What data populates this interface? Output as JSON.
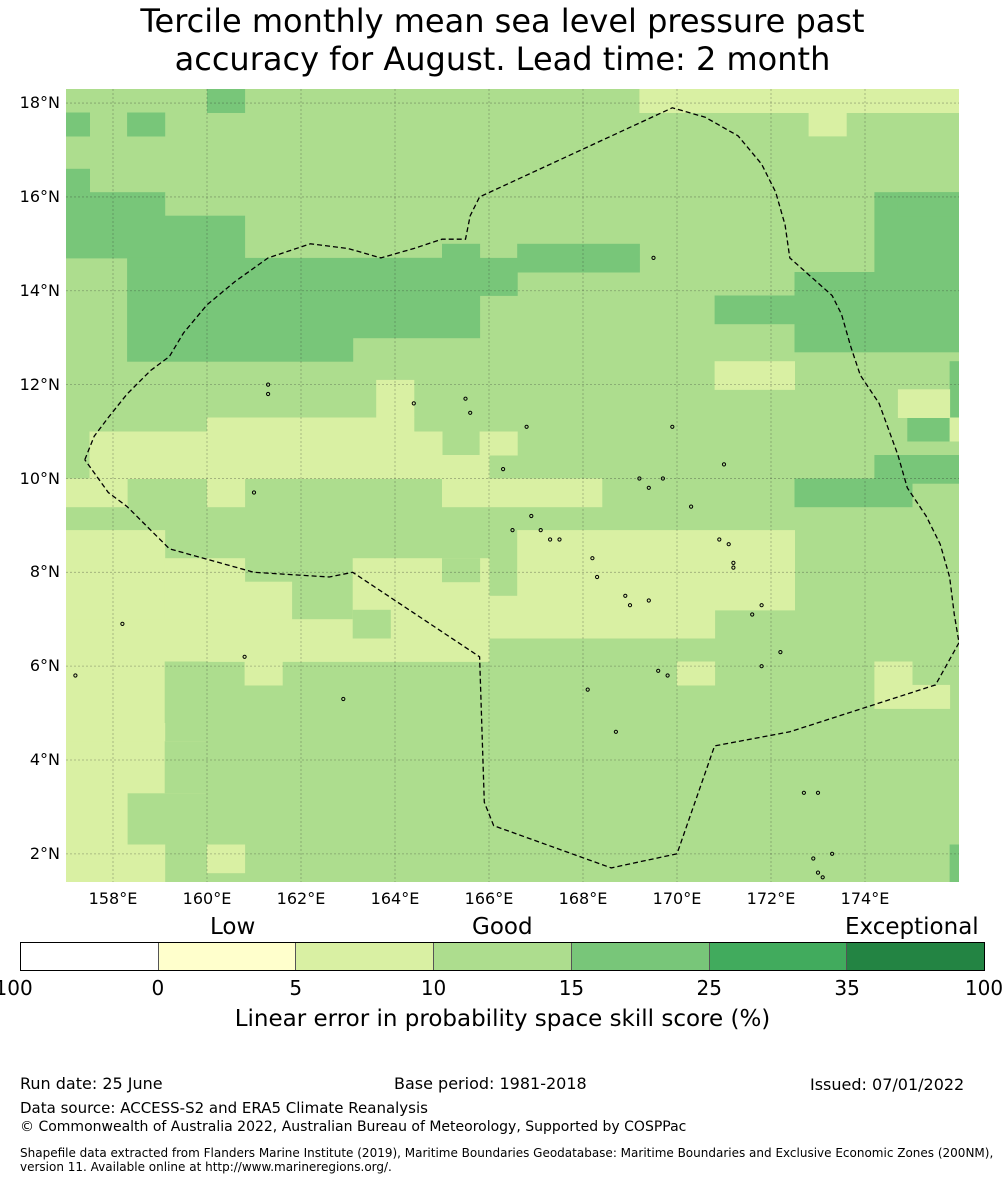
{
  "title": {
    "line1": "Tercile monthly mean sea level pressure past",
    "line2": "accuracy for August. Lead time: 2 month"
  },
  "map": {
    "lat_ticks": [
      {
        "lat": 18,
        "label": "18°N"
      },
      {
        "lat": 16,
        "label": "16°N"
      },
      {
        "lat": 14,
        "label": "14°N"
      },
      {
        "lat": 12,
        "label": "12°N"
      },
      {
        "lat": 10,
        "label": "10°N"
      },
      {
        "lat": 8,
        "label": "8°N"
      },
      {
        "lat": 6,
        "label": "6°N"
      },
      {
        "lat": 4,
        "label": "4°N"
      },
      {
        "lat": 2,
        "label": "2°N"
      }
    ],
    "lon_ticks": [
      {
        "lon": 158,
        "label": "158°E"
      },
      {
        "lon": 160,
        "label": "160°E"
      },
      {
        "lon": 162,
        "label": "162°E"
      },
      {
        "lon": 164,
        "label": "164°E"
      },
      {
        "lon": 166,
        "label": "166°E"
      },
      {
        "lon": 168,
        "label": "168°E"
      },
      {
        "lon": 170,
        "label": "170°E"
      },
      {
        "lon": 172,
        "label": "172°E"
      },
      {
        "lon": 174,
        "label": "174°E"
      }
    ],
    "extent": {
      "lon_min": 157.0,
      "lon_max": 176.0,
      "lat_min": 1.4,
      "lat_max": 18.3
    },
    "class_colors": {
      "5-10": "#d9f0a3",
      "10-15": "#addd8e",
      "15-25": "#78c679"
    },
    "regions": [
      {
        "class": "5-10",
        "lon": [
          169.2,
          176.0
        ],
        "lat": [
          17.8,
          18.3
        ]
      },
      {
        "class": "5-10",
        "lon": [
          172.8,
          173.6
        ],
        "lat": [
          17.3,
          18.3
        ]
      },
      {
        "class": "15-25",
        "lon": [
          160.0,
          160.8
        ],
        "lat": [
          17.8,
          18.3
        ]
      },
      {
        "class": "15-25",
        "lon": [
          157.0,
          157.5
        ],
        "lat": [
          17.3,
          17.8
        ]
      },
      {
        "class": "15-25",
        "lon": [
          158.3,
          159.1
        ],
        "lat": [
          17.3,
          17.8
        ]
      },
      {
        "class": "15-25",
        "lon": [
          157.0,
          157.5
        ],
        "lat": [
          15.8,
          16.6
        ]
      },
      {
        "class": "15-25",
        "lon": [
          157.0,
          159.1
        ],
        "lat": [
          14.7,
          16.1
        ]
      },
      {
        "class": "15-25",
        "lon": [
          159.1,
          160.8
        ],
        "lat": [
          14.7,
          15.6
        ]
      },
      {
        "class": "15-25",
        "lon": [
          158.3,
          165.8
        ],
        "lat": [
          13.0,
          14.7
        ]
      },
      {
        "class": "15-25",
        "lon": [
          158.3,
          163.1
        ],
        "lat": [
          12.5,
          13.0
        ]
      },
      {
        "class": "15-25",
        "lon": [
          163.1,
          166.6
        ],
        "lat": [
          13.9,
          14.7
        ]
      },
      {
        "class": "15-25",
        "lon": [
          165.0,
          165.8
        ],
        "lat": [
          14.7,
          15.0
        ]
      },
      {
        "class": "15-25",
        "lon": [
          166.6,
          169.2
        ],
        "lat": [
          14.4,
          15.0
        ]
      },
      {
        "class": "15-25",
        "lon": [
          174.2,
          176.0
        ],
        "lat": [
          14.4,
          16.1
        ]
      },
      {
        "class": "15-25",
        "lon": [
          174.7,
          176.0
        ],
        "lat": [
          15.6,
          16.1
        ]
      },
      {
        "class": "15-25",
        "lon": [
          172.5,
          176.0
        ],
        "lat": [
          12.7,
          14.4
        ]
      },
      {
        "class": "15-25",
        "lon": [
          170.8,
          173.4
        ],
        "lat": [
          13.3,
          13.9
        ]
      },
      {
        "class": "15-25",
        "lon": [
          174.9,
          175.8
        ],
        "lat": [
          10.8,
          11.3
        ]
      },
      {
        "class": "15-25",
        "lon": [
          174.2,
          176.0
        ],
        "lat": [
          9.9,
          10.5
        ]
      },
      {
        "class": "15-25",
        "lon": [
          172.5,
          175.0
        ],
        "lat": [
          9.4,
          10.0
        ]
      },
      {
        "class": "15-25",
        "lon": [
          175.8,
          176.0
        ],
        "lat": [
          11.3,
          12.5
        ]
      },
      {
        "class": "15-25",
        "lon": [
          175.8,
          176.0
        ],
        "lat": [
          1.4,
          2.2
        ]
      },
      {
        "class": "5-10",
        "lon": [
          170.8,
          172.5
        ],
        "lat": [
          11.9,
          12.5
        ]
      },
      {
        "class": "5-10",
        "lon": [
          174.7,
          175.8
        ],
        "lat": [
          11.3,
          11.9
        ]
      },
      {
        "class": "5-10",
        "lon": [
          175.8,
          176.0
        ],
        "lat": [
          10.8,
          11.3
        ]
      },
      {
        "class": "5-10",
        "lon": [
          163.6,
          164.4
        ],
        "lat": [
          11.3,
          12.1
        ]
      },
      {
        "class": "5-10",
        "lon": [
          160.0,
          164.4
        ],
        "lat": [
          10.5,
          11.3
        ]
      },
      {
        "class": "5-10",
        "lon": [
          157.5,
          165.0
        ],
        "lat": [
          10.0,
          11.0
        ]
      },
      {
        "class": "5-10",
        "lon": [
          165.8,
          166.6
        ],
        "lat": [
          10.5,
          11.0
        ]
      },
      {
        "class": "5-10",
        "lon": [
          158.3,
          160.8
        ],
        "lat": [
          10.0,
          10.5
        ]
      },
      {
        "class": "5-10",
        "lon": [
          164.4,
          166.0
        ],
        "lat": [
          10.0,
          10.5
        ]
      },
      {
        "class": "5-10",
        "lon": [
          157.0,
          158.3
        ],
        "lat": [
          9.4,
          10.0
        ]
      },
      {
        "class": "5-10",
        "lon": [
          160.0,
          160.8
        ],
        "lat": [
          9.4,
          10.0
        ]
      },
      {
        "class": "5-10",
        "lon": [
          165.0,
          168.4
        ],
        "lat": [
          9.4,
          10.0
        ]
      },
      {
        "class": "5-10",
        "lon": [
          157.0,
          159.1
        ],
        "lat": [
          7.0,
          8.9
        ]
      },
      {
        "class": "5-10",
        "lon": [
          159.1,
          160.8
        ],
        "lat": [
          7.0,
          8.3
        ]
      },
      {
        "class": "5-10",
        "lon": [
          160.8,
          161.8
        ],
        "lat": [
          7.0,
          7.8
        ]
      },
      {
        "class": "5-10",
        "lon": [
          163.1,
          166.0
        ],
        "lat": [
          7.0,
          8.3
        ]
      },
      {
        "class": "5-10",
        "lon": [
          166.6,
          172.5
        ],
        "lat": [
          7.2,
          8.9
        ]
      },
      {
        "class": "5-10",
        "lon": [
          166.0,
          170.8
        ],
        "lat": [
          6.6,
          7.5
        ]
      },
      {
        "class": "5-10",
        "lon": [
          157.0,
          166.0
        ],
        "lat": [
          6.1,
          7.0
        ]
      },
      {
        "class": "5-10",
        "lon": [
          157.0,
          159.1
        ],
        "lat": [
          4.4,
          6.1
        ]
      },
      {
        "class": "5-10",
        "lon": [
          160.8,
          161.6
        ],
        "lat": [
          5.6,
          6.1
        ]
      },
      {
        "class": "5-10",
        "lon": [
          157.0,
          160.0
        ],
        "lat": [
          3.3,
          4.4
        ]
      },
      {
        "class": "5-10",
        "lon": [
          157.0,
          158.3
        ],
        "lat": [
          2.2,
          3.3
        ]
      },
      {
        "class": "5-10",
        "lon": [
          157.0,
          159.1
        ],
        "lat": [
          1.4,
          2.2
        ]
      },
      {
        "class": "5-10",
        "lon": [
          160.0,
          160.8
        ],
        "lat": [
          1.6,
          2.2
        ]
      },
      {
        "class": "5-10",
        "lon": [
          170.0,
          170.8
        ],
        "lat": [
          5.6,
          6.1
        ]
      },
      {
        "class": "5-10",
        "lon": [
          174.2,
          175.0
        ],
        "lat": [
          5.1,
          6.1
        ]
      },
      {
        "class": "5-10",
        "lon": [
          175.0,
          175.8
        ],
        "lat": [
          5.1,
          5.6
        ]
      },
      {
        "class": "10-15",
        "lon": [
          163.1,
          163.9
        ],
        "lat": [
          6.6,
          7.2
        ]
      },
      {
        "class": "10-15",
        "lon": [
          165.0,
          165.8
        ],
        "lat": [
          7.8,
          8.3
        ]
      },
      {
        "class": "10-15",
        "lon": [
          159.1,
          160.0
        ],
        "lat": [
          3.3,
          4.4
        ]
      },
      {
        "class": "10-15",
        "lon": [
          159.1,
          160.0
        ],
        "lat": [
          4.8,
          6.1
        ]
      }
    ],
    "boundary": [
      [
        157.4,
        10.4
      ],
      [
        157.6,
        10.9
      ],
      [
        157.9,
        11.3
      ],
      [
        158.3,
        11.8
      ],
      [
        158.8,
        12.3
      ],
      [
        159.2,
        12.6
      ],
      [
        159.5,
        13.1
      ],
      [
        160.0,
        13.7
      ],
      [
        160.6,
        14.2
      ],
      [
        161.3,
        14.7
      ],
      [
        162.2,
        15.0
      ],
      [
        163.0,
        14.9
      ],
      [
        163.7,
        14.7
      ],
      [
        164.4,
        14.9
      ],
      [
        165.0,
        15.1
      ],
      [
        165.5,
        15.1
      ],
      [
        165.6,
        15.6
      ],
      [
        165.8,
        16.0
      ],
      [
        169.9,
        17.9
      ],
      [
        170.6,
        17.7
      ],
      [
        171.3,
        17.3
      ],
      [
        171.8,
        16.7
      ],
      [
        172.1,
        16.1
      ],
      [
        172.3,
        15.4
      ],
      [
        172.4,
        14.7
      ],
      [
        173.3,
        13.9
      ],
      [
        173.5,
        13.5
      ],
      [
        173.7,
        12.8
      ],
      [
        173.9,
        12.2
      ],
      [
        174.3,
        11.6
      ],
      [
        174.7,
        10.5
      ],
      [
        174.9,
        9.8
      ],
      [
        175.3,
        9.2
      ],
      [
        175.6,
        8.6
      ],
      [
        175.8,
        7.9
      ],
      [
        175.9,
        7.1
      ],
      [
        176.0,
        6.5
      ],
      [
        175.5,
        5.6
      ],
      [
        172.4,
        4.6
      ],
      [
        170.8,
        4.3
      ],
      [
        170.0,
        2.0
      ],
      [
        168.6,
        1.7
      ],
      [
        166.1,
        2.6
      ],
      [
        165.9,
        3.1
      ],
      [
        165.8,
        6.2
      ],
      [
        163.1,
        8.0
      ],
      [
        162.6,
        7.9
      ],
      [
        161.0,
        8.0
      ],
      [
        159.2,
        8.5
      ],
      [
        158.3,
        9.4
      ],
      [
        157.9,
        9.7
      ],
      [
        157.4,
        10.4
      ]
    ],
    "islands": [
      [
        158.2,
        6.9
      ],
      [
        157.2,
        5.8
      ],
      [
        160.8,
        6.2
      ],
      [
        162.9,
        5.3
      ],
      [
        161.3,
        12.0
      ],
      [
        161.3,
        11.8
      ],
      [
        164.4,
        11.6
      ],
      [
        165.5,
        11.7
      ],
      [
        165.6,
        11.4
      ],
      [
        166.8,
        11.1
      ],
      [
        166.3,
        10.2
      ],
      [
        169.9,
        11.1
      ],
      [
        169.2,
        10.0
      ],
      [
        169.7,
        10.0
      ],
      [
        169.4,
        9.8
      ],
      [
        170.3,
        9.4
      ],
      [
        171.0,
        10.3
      ],
      [
        166.5,
        8.9
      ],
      [
        166.9,
        9.2
      ],
      [
        167.1,
        8.9
      ],
      [
        167.3,
        8.7
      ],
      [
        167.5,
        8.7
      ],
      [
        168.2,
        8.3
      ],
      [
        168.3,
        7.9
      ],
      [
        168.9,
        7.5
      ],
      [
        169.0,
        7.3
      ],
      [
        169.4,
        7.4
      ],
      [
        170.9,
        8.7
      ],
      [
        171.1,
        8.6
      ],
      [
        171.2,
        8.2
      ],
      [
        171.2,
        8.1
      ],
      [
        171.8,
        7.3
      ],
      [
        171.6,
        7.1
      ],
      [
        171.8,
        6.0
      ],
      [
        169.6,
        5.9
      ],
      [
        169.8,
        5.8
      ],
      [
        168.1,
        5.5
      ],
      [
        168.7,
        4.6
      ],
      [
        172.7,
        3.3
      ],
      [
        173.0,
        3.3
      ],
      [
        172.9,
        1.9
      ],
      [
        173.0,
        1.6
      ],
      [
        173.1,
        1.5
      ],
      [
        173.3,
        2.0
      ],
      [
        172.2,
        6.3
      ],
      [
        169.5,
        14.7
      ],
      [
        161.0,
        9.7
      ]
    ]
  },
  "legend": {
    "category_labels": [
      "Low",
      "Good",
      "Exceptional"
    ],
    "colors": [
      "#ffffff",
      "#ffffcc",
      "#d9f0a3",
      "#addd8e",
      "#78c679",
      "#41ab5d",
      "#238443"
    ],
    "ticks": [
      "-100",
      "0",
      "5",
      "10",
      "15",
      "25",
      "35",
      "100"
    ],
    "title": "Linear error in probability space skill score (%)"
  },
  "footer": {
    "run_date": "Run date: 25 June",
    "base_period": "Base period: 1981-2018",
    "issued": "Issued: 07/01/2022",
    "data_source": "Data source: ACCESS-S2 and ERA5 Climate Reanalysis",
    "copyright": "© Commonwealth of Australia 2022, Australian Bureau of Meteorology, Supported by COSPPac",
    "shapefile_note": "Shapefile data extracted from Flanders Marine Institute (2019), Maritime Boundaries Geodatabase: Maritime Boundaries and Exclusive Economic Zones (200NM), version 11. Available online at http://www.marineregions.org/."
  }
}
